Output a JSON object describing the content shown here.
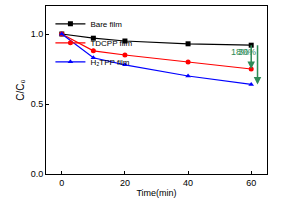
{
  "chart_data": {
    "type": "line",
    "x_label": "Time(min)",
    "y_label": "C/C₀",
    "x": [
      0,
      10,
      20,
      40,
      60
    ],
    "series": [
      {
        "name": "Bare film",
        "color": "#000000",
        "marker": "square",
        "values": [
          1.0,
          0.97,
          0.95,
          0.93,
          0.92
        ]
      },
      {
        "name": "TDCPP film",
        "color": "#ff0000",
        "marker": "circle",
        "values": [
          1.0,
          0.88,
          0.85,
          0.8,
          0.75
        ]
      },
      {
        "name": "H₂TPP film",
        "color": "#0000ff",
        "marker": "triangle-up",
        "values": [
          1.0,
          0.83,
          0.78,
          0.7,
          0.64
        ]
      }
    ],
    "xlim": [
      -5,
      65
    ],
    "xticks": [
      0,
      20,
      40,
      60
    ],
    "ylim": [
      0,
      1.2
    ],
    "yticks": [
      {
        "value": 0,
        "label": "0.0"
      },
      {
        "value": 0.5,
        "label": "0.5"
      },
      {
        "value": 1.0,
        "label": "1.0"
      }
    ],
    "legend": "upper left",
    "grid": false,
    "annotations": [
      {
        "text": "18%",
        "x": 60,
        "y": 0.75,
        "x_from": 60,
        "y_from": 0.92,
        "color": "#2e8b57"
      },
      {
        "text": "30%",
        "x": 62,
        "y": 0.64,
        "x_from": 62,
        "y_from": 0.92,
        "color": "#2e8b57"
      }
    ]
  }
}
